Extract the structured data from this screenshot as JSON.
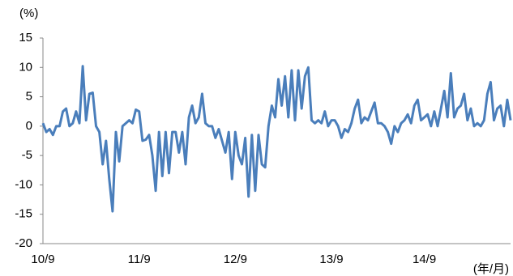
{
  "chart_data": {
    "type": "line",
    "y_label": "(%)",
    "x_label": "(年/月)",
    "categories": [
      "10/9",
      null,
      null,
      null,
      null,
      null,
      null,
      null,
      null,
      null,
      null,
      null,
      null,
      null,
      null,
      null,
      null,
      null,
      null,
      null,
      null,
      null,
      null,
      null,
      null,
      null,
      null,
      null,
      null,
      "11/9",
      null,
      null,
      null,
      null,
      null,
      null,
      null,
      null,
      null,
      null,
      null,
      null,
      null,
      null,
      null,
      null,
      null,
      null,
      null,
      null,
      null,
      null,
      null,
      null,
      null,
      null,
      null,
      null,
      "12/9",
      null,
      null,
      null,
      null,
      null,
      null,
      null,
      null,
      null,
      null,
      null,
      null,
      null,
      null,
      null,
      null,
      null,
      null,
      null,
      null,
      null,
      null,
      null,
      null,
      null,
      null,
      null,
      null,
      "13/9",
      null,
      null,
      null,
      null,
      null,
      null,
      null,
      null,
      null,
      null,
      null,
      null,
      null,
      null,
      null,
      null,
      null,
      null,
      null,
      null,
      null,
      null,
      null,
      null,
      null,
      null,
      null,
      "14/9",
      null,
      null,
      null,
      null,
      null,
      null,
      null,
      null,
      null,
      null,
      null,
      null,
      null,
      null,
      null,
      null,
      null,
      null,
      null,
      null,
      null,
      null,
      null,
      null,
      null,
      null
    ],
    "values": [
      0.5,
      -1,
      -0.5,
      -1.5,
      0,
      0,
      2.5,
      3,
      0,
      0.5,
      2.5,
      0.5,
      10.2,
      1,
      5.5,
      5.7,
      0,
      -1,
      -6.5,
      -2.5,
      -9,
      -14.5,
      -1,
      -6,
      0,
      0.5,
      1,
      0.5,
      2.8,
      2.5,
      -2.5,
      -2.3,
      -1.5,
      -5,
      -11,
      -1,
      -8.5,
      -1,
      -8,
      -1,
      -1,
      -4.5,
      -1,
      -6.5,
      1.5,
      3.5,
      0.5,
      1.5,
      5.5,
      0.5,
      0,
      0,
      -2,
      -0.5,
      -2.5,
      -4.5,
      -1,
      -9,
      -1,
      -5,
      -6.5,
      -2,
      -12,
      -1.5,
      -11,
      -1.5,
      -6.5,
      -7,
      0,
      3.5,
      1.5,
      8,
      3.5,
      8.5,
      1.5,
      9.5,
      1,
      9.5,
      3,
      8.5,
      10,
      1,
      0.5,
      1,
      0.5,
      2.5,
      0,
      1,
      1,
      0,
      -2,
      -0.5,
      -1,
      0.5,
      3,
      4.5,
      0.5,
      1.5,
      1,
      2.5,
      4,
      0.5,
      0.5,
      0,
      -1,
      -3,
      0,
      -1,
      0.5,
      1,
      2,
      0.5,
      3.5,
      4.5,
      1,
      1.5,
      2,
      0,
      2.5,
      0,
      3,
      6,
      1.5,
      9,
      1.5,
      3,
      3.5,
      5.5,
      1,
      3,
      0,
      0.5,
      0,
      1,
      5.5,
      7.5,
      1,
      3,
      3.5,
      0,
      4.5,
      1
    ],
    "color": "#4a7ebb",
    "ylim": [
      -20,
      15
    ],
    "yticks": [
      -20,
      -15,
      -10,
      -5,
      0,
      5,
      10,
      15
    ]
  }
}
